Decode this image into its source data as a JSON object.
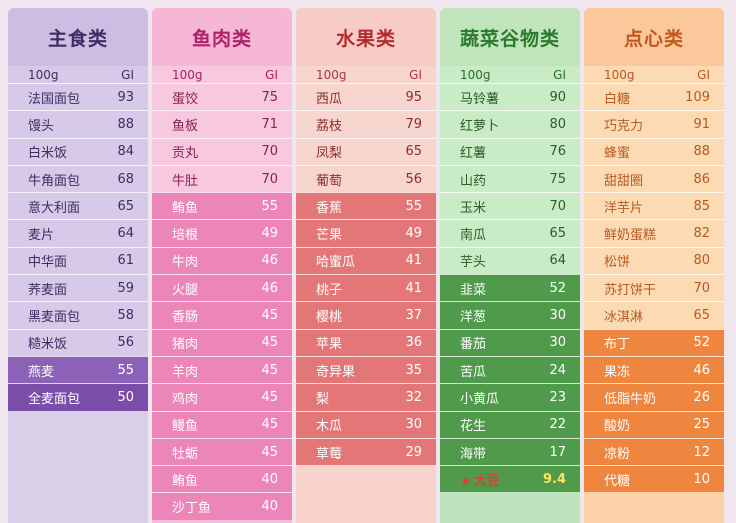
{
  "columns": [
    {
      "title": "主食类",
      "unit": "100g",
      "gi_label": "GI",
      "rows": [
        {
          "name": "法国面包",
          "gi": "93",
          "level": "normal"
        },
        {
          "name": "馒头",
          "gi": "88",
          "level": "normal"
        },
        {
          "name": "白米饭",
          "gi": "84",
          "level": "normal"
        },
        {
          "name": "牛角面包",
          "gi": "68",
          "level": "normal"
        },
        {
          "name": "意大利面",
          "gi": "65",
          "level": "normal"
        },
        {
          "name": "麦片",
          "gi": "64",
          "level": "normal"
        },
        {
          "name": "中华面",
          "gi": "61",
          "level": "normal"
        },
        {
          "name": "荞麦面",
          "gi": "59",
          "level": "normal"
        },
        {
          "name": "黑麦面包",
          "gi": "58",
          "level": "normal"
        },
        {
          "name": "糙米饭",
          "gi": "56",
          "level": "normal"
        },
        {
          "name": "燕麦",
          "gi": "55",
          "level": "hi"
        },
        {
          "name": "全麦面包",
          "gi": "50",
          "level": "last"
        }
      ]
    },
    {
      "title": "鱼肉类",
      "unit": "100g",
      "gi_label": "GI",
      "rows": [
        {
          "name": "蛋饺",
          "gi": "75",
          "level": "normal"
        },
        {
          "name": "鱼板",
          "gi": "71",
          "level": "normal"
        },
        {
          "name": "贡丸",
          "gi": "70",
          "level": "normal"
        },
        {
          "name": "牛肚",
          "gi": "70",
          "level": "normal"
        },
        {
          "name": "鲔鱼",
          "gi": "55",
          "level": "hi"
        },
        {
          "name": "培根",
          "gi": "49",
          "level": "hi"
        },
        {
          "name": "牛肉",
          "gi": "46",
          "level": "hi"
        },
        {
          "name": "火腿",
          "gi": "46",
          "level": "hi"
        },
        {
          "name": "香肠",
          "gi": "45",
          "level": "hi"
        },
        {
          "name": "猪肉",
          "gi": "45",
          "level": "hi"
        },
        {
          "name": "羊肉",
          "gi": "45",
          "level": "hi"
        },
        {
          "name": "鸡肉",
          "gi": "45",
          "level": "hi"
        },
        {
          "name": "鳗鱼",
          "gi": "45",
          "level": "hi"
        },
        {
          "name": "牡蛎",
          "gi": "45",
          "level": "hi"
        },
        {
          "name": "鲔鱼",
          "gi": "40",
          "level": "hi"
        },
        {
          "name": "沙丁鱼",
          "gi": "40",
          "level": "hi"
        }
      ]
    },
    {
      "title": "水果类",
      "unit": "100g",
      "gi_label": "GI",
      "rows": [
        {
          "name": "西瓜",
          "gi": "95",
          "level": "normal"
        },
        {
          "name": "荔枝",
          "gi": "79",
          "level": "normal"
        },
        {
          "name": "凤梨",
          "gi": "65",
          "level": "normal"
        },
        {
          "name": "葡萄",
          "gi": "56",
          "level": "normal"
        },
        {
          "name": "香蕉",
          "gi": "55",
          "level": "hi"
        },
        {
          "name": "芒果",
          "gi": "49",
          "level": "hi"
        },
        {
          "name": "哈蜜瓜",
          "gi": "41",
          "level": "hi"
        },
        {
          "name": "桃子",
          "gi": "41",
          "level": "hi"
        },
        {
          "name": "樱桃",
          "gi": "37",
          "level": "hi"
        },
        {
          "name": "苹果",
          "gi": "36",
          "level": "hi"
        },
        {
          "name": "奇异果",
          "gi": "35",
          "level": "hi"
        },
        {
          "name": "梨",
          "gi": "32",
          "level": "hi"
        },
        {
          "name": "木瓜",
          "gi": "30",
          "level": "hi"
        },
        {
          "name": "草莓",
          "gi": "29",
          "level": "hi"
        }
      ]
    },
    {
      "title": "蔬菜谷物类",
      "unit": "100g",
      "gi_label": "GI",
      "rows": [
        {
          "name": "马铃薯",
          "gi": "90",
          "level": "normal"
        },
        {
          "name": "红萝卜",
          "gi": "80",
          "level": "normal"
        },
        {
          "name": "红薯",
          "gi": "76",
          "level": "normal"
        },
        {
          "name": "山药",
          "gi": "75",
          "level": "normal"
        },
        {
          "name": "玉米",
          "gi": "70",
          "level": "normal"
        },
        {
          "name": "南瓜",
          "gi": "65",
          "level": "normal"
        },
        {
          "name": "芋头",
          "gi": "64",
          "level": "normal"
        },
        {
          "name": "韭菜",
          "gi": "52",
          "level": "hi"
        },
        {
          "name": "洋葱",
          "gi": "30",
          "level": "hi"
        },
        {
          "name": "番茄",
          "gi": "30",
          "level": "hi"
        },
        {
          "name": "苦瓜",
          "gi": "24",
          "level": "hi"
        },
        {
          "name": "小黄瓜",
          "gi": "23",
          "level": "hi"
        },
        {
          "name": "花生",
          "gi": "22",
          "level": "hi"
        },
        {
          "name": "海带",
          "gi": "17",
          "level": "hi"
        }
      ],
      "star_row": {
        "mark": "★",
        "name": "大豆",
        "gi": "9.4"
      }
    },
    {
      "title": "点心类",
      "unit": "100g",
      "gi_label": "GI",
      "rows": [
        {
          "name": "白糖",
          "gi": "109",
          "level": "normal"
        },
        {
          "name": "巧克力",
          "gi": "91",
          "level": "normal"
        },
        {
          "name": "蜂蜜",
          "gi": "88",
          "level": "normal"
        },
        {
          "name": "甜甜圈",
          "gi": "86",
          "level": "normal"
        },
        {
          "name": "洋芋片",
          "gi": "85",
          "level": "normal"
        },
        {
          "name": "鲜奶蛋糕",
          "gi": "82",
          "level": "normal"
        },
        {
          "name": "松饼",
          "gi": "80",
          "level": "normal"
        },
        {
          "name": "苏打饼干",
          "gi": "70",
          "level": "normal"
        },
        {
          "name": "冰淇淋",
          "gi": "65",
          "level": "normal"
        },
        {
          "name": "布丁",
          "gi": "52",
          "level": "hi"
        },
        {
          "name": "果冻",
          "gi": "46",
          "level": "hi"
        },
        {
          "name": "低脂牛奶",
          "gi": "26",
          "level": "hi"
        },
        {
          "name": "酸奶",
          "gi": "25",
          "level": "hi"
        },
        {
          "name": "凉粉",
          "gi": "12",
          "level": "hi"
        },
        {
          "name": "代糖",
          "gi": "10",
          "level": "hi"
        }
      ]
    }
  ]
}
